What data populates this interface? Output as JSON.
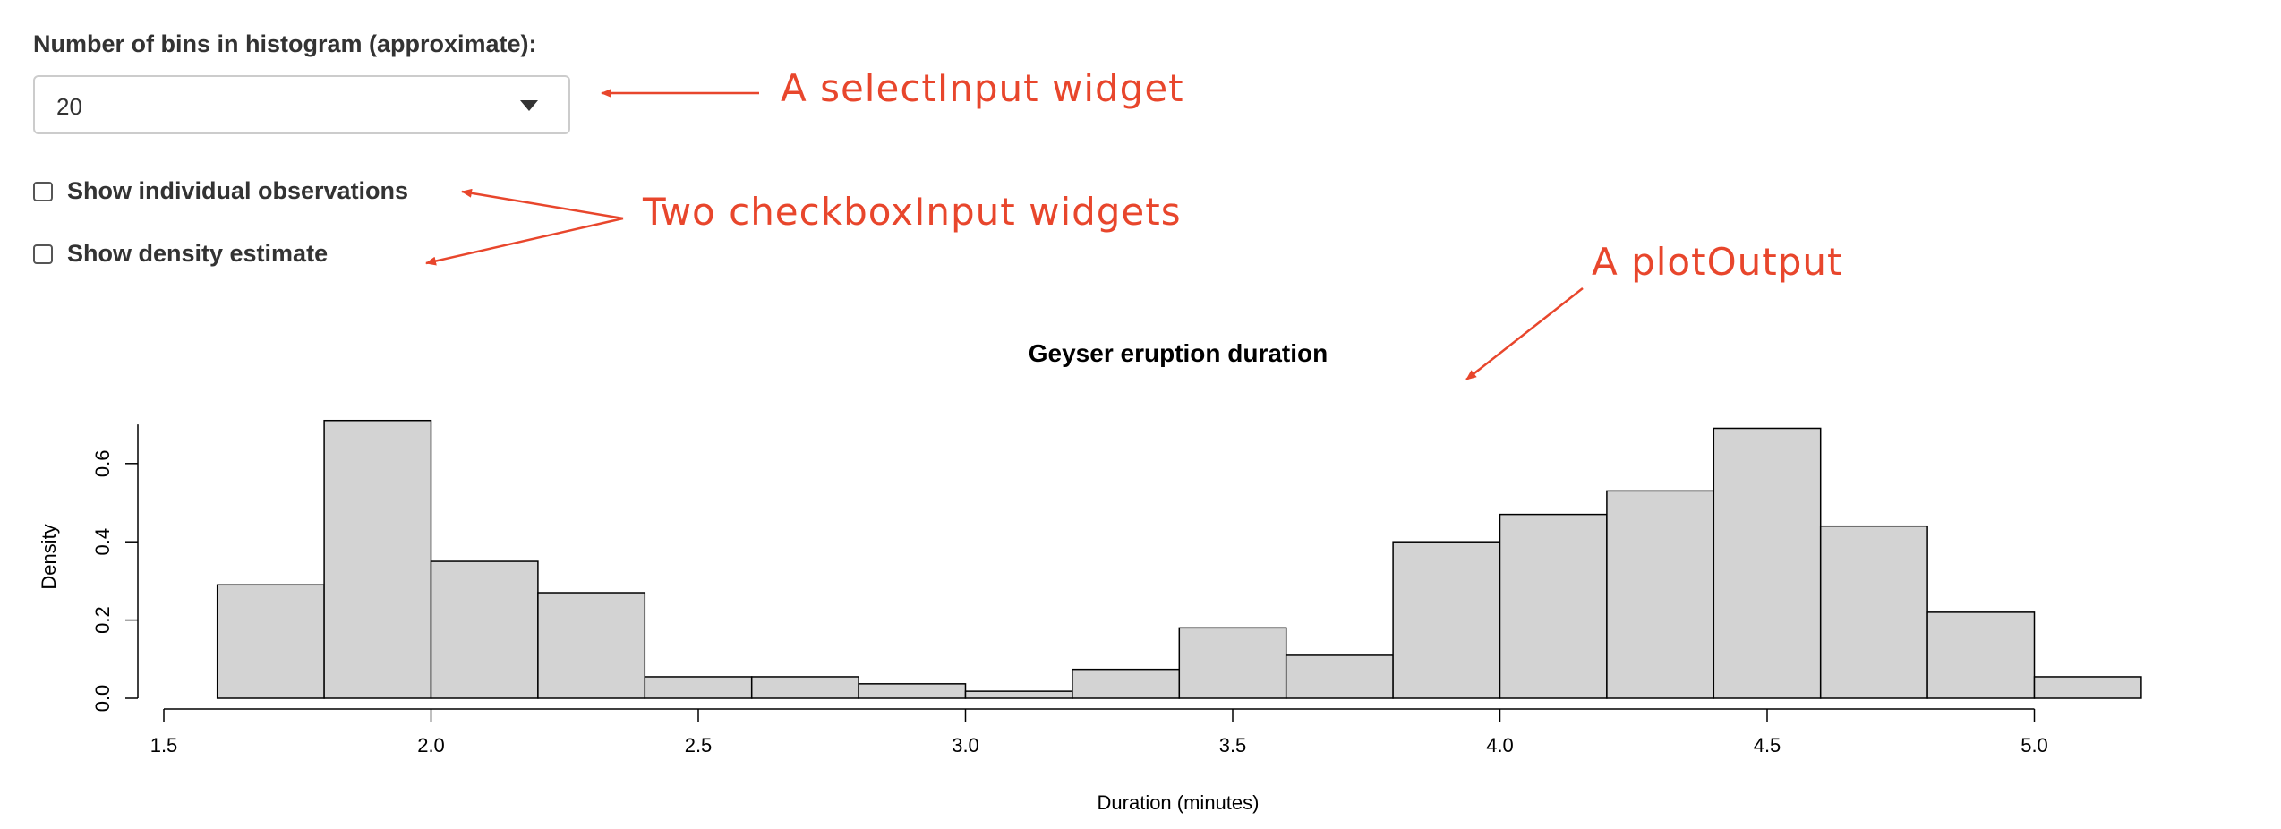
{
  "select_input": {
    "label": "Number of bins in histogram (approximate):",
    "value": "20"
  },
  "checkboxes": [
    {
      "label": "Show individual observations",
      "checked": false
    },
    {
      "label": "Show density estimate",
      "checked": false
    }
  ],
  "annotations": {
    "select": "A selectInput widget",
    "checkbox": "Two checkboxInput widgets",
    "plot": "A plotOutput",
    "color": "#e8462c"
  },
  "chart_data": {
    "type": "bar",
    "title": "Geyser eruption duration",
    "xlabel": "Duration (minutes)",
    "ylabel": "Density",
    "bin_edges": [
      1.6,
      1.8,
      2.0,
      2.2,
      2.4,
      2.6,
      2.8,
      3.0,
      3.2,
      3.4,
      3.6,
      3.8,
      4.0,
      4.2,
      4.4,
      4.6,
      4.8,
      5.0,
      5.2
    ],
    "values": [
      0.29,
      0.71,
      0.35,
      0.27,
      0.055,
      0.055,
      0.037,
      0.018,
      0.074,
      0.18,
      0.11,
      0.4,
      0.47,
      0.53,
      0.69,
      0.44,
      0.22,
      0.055
    ],
    "xlim": [
      1.5,
      5.2
    ],
    "ylim": [
      0,
      0.7
    ],
    "x_ticks": [
      "1.5",
      "2.0",
      "2.5",
      "3.0",
      "3.5",
      "4.0",
      "4.5",
      "5.0"
    ],
    "y_ticks": [
      "0.0",
      "0.2",
      "0.4",
      "0.6"
    ],
    "bar_color": "#d3d3d3",
    "grid": false,
    "legend": "none"
  }
}
